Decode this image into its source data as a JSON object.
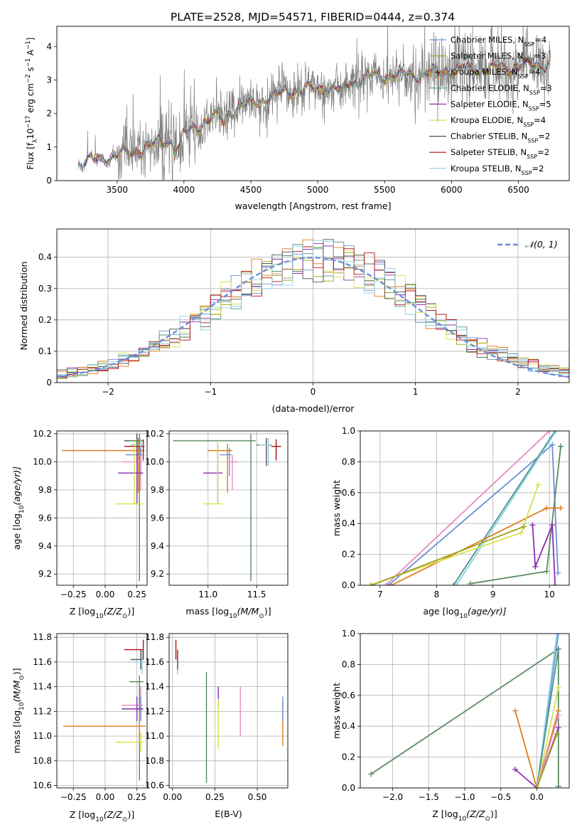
{
  "figure": {
    "title": "PLATE=2528, MJD=54571, FIBERID=0444, z=0.374",
    "series_colors": [
      "#6a8fd6",
      "#a0a020",
      "#e07b1a",
      "#4f8f8f",
      "#8b2fb0",
      "#d4e24a",
      "#505050",
      "#b01010",
      "#8ad0e0",
      "#e78ac3",
      "#5a8a60"
    ]
  },
  "chart_data": [
    {
      "type": "line",
      "id": "spectrum",
      "title": "PLATE=2528, MJD=54571, FIBERID=0444, z=0.374",
      "xlabel": "wavelength [Angstrom, rest frame]",
      "ylabel": "Flux [f",
      "ylabel_sub": "λ",
      "ylabel_rest": "10",
      "ylabel_exp1": "−17",
      "ylabel_mid": " erg cm",
      "ylabel_exp2": "−2",
      "ylabel_mid2": " s",
      "ylabel_exp3": "−1",
      "ylabel_end": " A",
      "ylabel_exp4": "−1",
      "ylabel_close": "]",
      "xlim": [
        3050,
        6880
      ],
      "ylim": [
        0,
        4.6
      ],
      "xticks": [
        3500,
        4000,
        4500,
        5000,
        5500,
        6000,
        6500
      ],
      "yticks": [
        0,
        1,
        2,
        3,
        4
      ],
      "grid": false,
      "legend_position": "upper-right",
      "data_range": [
        3210,
        6740
      ],
      "continuum_anchor_x": [
        3210,
        3500,
        3700,
        3950,
        4200,
        4500,
        4800,
        5100,
        5400,
        5700,
        6000,
        6300,
        6740
      ],
      "continuum_anchor_y": [
        0.5,
        0.75,
        0.95,
        1.3,
        1.85,
        2.3,
        2.7,
        2.75,
        3.1,
        3.15,
        3.3,
        3.35,
        3.5
      ],
      "series": [
        {
          "legend": "Chabrier MILES, N",
          "legend_sub": "SSP",
          "legend_value": "=4",
          "color": "#6a8fd6"
        },
        {
          "legend": "Salpeter MILES, N",
          "legend_sub": "SSP",
          "legend_value": "=3",
          "color": "#a0a020"
        },
        {
          "legend": "Kroupa MILES, N",
          "legend_sub": "SSP",
          "legend_value": "=4",
          "color": "#e07b1a"
        },
        {
          "legend": "Chabrier ELODIE, N",
          "legend_sub": "SSP",
          "legend_value": "=3",
          "color": "#4f8f8f"
        },
        {
          "legend": "Salpeter ELODIE, N",
          "legend_sub": "SSP",
          "legend_value": "=5",
          "color": "#8b2fb0"
        },
        {
          "legend": "Kroupa ELODIE, N",
          "legend_sub": "SSP",
          "legend_value": "=4",
          "color": "#d4e24a"
        },
        {
          "legend": "Chabrier STELIB, N",
          "legend_sub": "SSP",
          "legend_value": "=2",
          "color": "#505050"
        },
        {
          "legend": "Salpeter STELIB, N",
          "legend_sub": "SSP",
          "legend_value": "=2",
          "color": "#b01010"
        },
        {
          "legend": "Kroupa STELIB, N",
          "legend_sub": "SSP",
          "legend_value": "=2",
          "color": "#8ad0e0"
        }
      ]
    },
    {
      "type": "area",
      "id": "residual-histogram",
      "xlabel": "(data-model)/error",
      "ylabel": "Normed distribution",
      "xlim": [
        -2.5,
        2.5
      ],
      "ylim": [
        0,
        0.49
      ],
      "xticks": [
        -2,
        -1,
        0,
        1,
        2
      ],
      "yticks": [
        0.0,
        0.1,
        0.2,
        0.3,
        0.4
      ],
      "grid": true,
      "legend_position": "upper-right",
      "reference_curve": {
        "legend": "𝒩(0, 1)",
        "color": "#6a8fd6",
        "style": "dashed"
      },
      "bin_width": 0.1,
      "series_colors": [
        "#6a8fd6",
        "#a0a020",
        "#e07b1a",
        "#4f8f8f",
        "#8b2fb0",
        "#d4e24a",
        "#505050",
        "#b01010",
        "#8ad0e0"
      ]
    },
    {
      "type": "scatter",
      "id": "age-vs-Z",
      "xlabel": "Z [log",
      "xlabel_sub": "10",
      "xlabel_rest": "(Z/Z",
      "xlabel_sub2": "⊙",
      "xlabel_end": ")]",
      "ylabel": "age  [log",
      "ylabel_sub": "10",
      "ylabel_rest": "(age/yr)]",
      "xlim": [
        -0.38,
        0.33
      ],
      "ylim": [
        9.12,
        10.22
      ],
      "xticks": [
        "-0.25",
        "0.00",
        "0.25"
      ],
      "xtick_values": [
        -0.25,
        0.0,
        0.25
      ],
      "yticks": [
        "9.2",
        "9.4",
        "9.6",
        "9.8",
        "10.0",
        "10.2"
      ],
      "ytick_values": [
        9.2,
        9.4,
        9.6,
        9.8,
        10.0,
        10.2
      ],
      "grid": true,
      "points": [
        {
          "x": 0.26,
          "y": 10.08,
          "xerr": [
            0.6,
            0.05
          ],
          "yerr": [
            0.3,
            0.09
          ],
          "color": "#e07b1a"
        },
        {
          "x": 0.25,
          "y": 10.15,
          "xerr": [
            0.1,
            0.05
          ],
          "yerr": [
            0.15,
            0.05
          ],
          "color": "#505050"
        },
        {
          "x": 0.27,
          "y": 10.15,
          "xerr": [
            0.08,
            0.03
          ],
          "yerr": [
            1.0,
            0.05
          ],
          "color": "#5a8a60"
        },
        {
          "x": 0.3,
          "y": 10.11,
          "xerr": [
            0.15,
            0.01
          ],
          "yerr": [
            0.1,
            0.05
          ],
          "color": "#b01010"
        },
        {
          "x": 0.28,
          "y": 10.12,
          "xerr": [
            0.08,
            0.02
          ],
          "yerr": [
            0.15,
            0.05
          ],
          "color": "#8ad0e0"
        },
        {
          "x": 0.28,
          "y": 10.05,
          "xerr": [
            0.12,
            0.02
          ],
          "yerr": [
            0.15,
            0.05
          ],
          "color": "#6a8fd6"
        },
        {
          "x": 0.28,
          "y": 10.0,
          "xerr": [
            0.15,
            0.02
          ],
          "yerr": [
            0.2,
            0.05
          ],
          "color": "#e78ac3"
        },
        {
          "x": 0.25,
          "y": 9.92,
          "xerr": [
            0.15,
            0.05
          ],
          "yerr": [
            0.22,
            0.2
          ],
          "color": "#8b2fb0"
        },
        {
          "x": 0.23,
          "y": 9.7,
          "xerr": [
            0.15,
            0.07
          ],
          "yerr": [
            0.0,
            0.45
          ],
          "color": "#d4e24a"
        }
      ]
    },
    {
      "type": "scatter",
      "id": "age-vs-mass",
      "xlabel": "mass [log",
      "xlabel_sub": "10",
      "xlabel_rest": "(M/M",
      "xlabel_sub2": "⊙",
      "xlabel_end": ")]",
      "xlim": [
        10.6,
        11.82
      ],
      "ylim": [
        9.12,
        10.22
      ],
      "xticks": [
        "11.0",
        "11.5"
      ],
      "xtick_values": [
        11.0,
        11.5
      ],
      "yticks": [
        "9.2",
        "9.4",
        "9.6",
        "9.8",
        "10.0",
        "10.2"
      ],
      "ytick_values": [
        9.2,
        9.4,
        9.6,
        9.8,
        10.0,
        10.2
      ],
      "grid": true,
      "points": [
        {
          "x": 11.44,
          "y": 10.15,
          "xerr": [
            0.8,
            0.05
          ],
          "yerr": [
            1.0,
            0.05
          ],
          "color": "#5a8a60"
        },
        {
          "x": 11.2,
          "y": 10.08,
          "xerr": [
            0.2,
            0.05
          ],
          "yerr": [
            0.3,
            0.05
          ],
          "color": "#e07b1a"
        },
        {
          "x": 11.6,
          "y": 10.12,
          "xerr": [
            0.1,
            0.05
          ],
          "yerr": [
            0.15,
            0.05
          ],
          "color": "#505050"
        },
        {
          "x": 11.7,
          "y": 10.11,
          "xerr": [
            0.05,
            0.05
          ],
          "yerr": [
            0.1,
            0.05
          ],
          "color": "#b01010"
        },
        {
          "x": 11.62,
          "y": 10.12,
          "xerr": [
            0.1,
            0.02
          ],
          "yerr": [
            0.15,
            0.05
          ],
          "color": "#8ad0e0"
        },
        {
          "x": 11.22,
          "y": 10.05,
          "xerr": [
            0.1,
            0.02
          ],
          "yerr": [
            0.15,
            0.05
          ],
          "color": "#6a8fd6"
        },
        {
          "x": 11.25,
          "y": 10.0,
          "xerr": [
            0.05,
            0.05
          ],
          "yerr": [
            0.2,
            0.05
          ],
          "color": "#e78ac3"
        },
        {
          "x": 11.1,
          "y": 9.92,
          "xerr": [
            0.15,
            0.05
          ],
          "yerr": [
            0.22,
            0.2
          ],
          "color": "#8b2fb0"
        },
        {
          "x": 11.1,
          "y": 9.7,
          "xerr": [
            0.15,
            0.05
          ],
          "yerr": [
            0.0,
            0.45
          ],
          "color": "#d4e24a"
        }
      ]
    },
    {
      "type": "line",
      "id": "massweight-vs-age",
      "xlabel": "age  [log",
      "xlabel_sub": "10",
      "xlabel_rest": "(age/yr)]",
      "ylabel": "mass weight",
      "xlim": [
        6.65,
        10.35
      ],
      "ylim": [
        0,
        1.0
      ],
      "xticks": [
        "7",
        "8",
        "9",
        "10"
      ],
      "xtick_values": [
        7,
        8,
        9,
        10
      ],
      "yticks": [
        "0.0",
        "0.2",
        "0.4",
        "0.6",
        "0.8",
        "1.0"
      ],
      "ytick_values": [
        0.0,
        0.2,
        0.4,
        0.6,
        0.8,
        1.0
      ],
      "grid": true,
      "series": [
        {
          "color": "#e78ac3",
          "x": [
            7.1,
            10.0
          ],
          "y": [
            0.0,
            1.0
          ]
        },
        {
          "color": "#6a8fd6",
          "x": [
            7.15,
            10.05,
            10.15
          ],
          "y": [
            0.0,
            0.91,
            0.08
          ]
        },
        {
          "color": "#4f8f8f",
          "x": [
            8.3,
            10.1
          ],
          "y": [
            0.0,
            1.0
          ]
        },
        {
          "color": "#8ad0e0",
          "x": [
            8.35,
            10.12
          ],
          "y": [
            0.0,
            1.0
          ]
        },
        {
          "color": "#5a8a60",
          "x": [
            8.6,
            9.95,
            10.2,
            10.2
          ],
          "y": [
            0.01,
            0.09,
            0.9,
            0.9
          ]
        },
        {
          "color": "#e07b1a",
          "x": [
            7.2,
            9.95,
            10.2
          ],
          "y": [
            0.0,
            0.5,
            0.5
          ]
        },
        {
          "color": "#8b2fb0",
          "x": [
            9.7,
            9.75,
            10.05,
            10.1
          ],
          "y": [
            0.39,
            0.12,
            0.39,
            0.0
          ]
        },
        {
          "color": "#d4e24a",
          "x": [
            6.82,
            9.5,
            9.8
          ],
          "y": [
            0.0,
            0.34,
            0.65
          ]
        },
        {
          "color": "#a0a020",
          "x": [
            6.85,
            9.55
          ],
          "y": [
            0.0,
            0.38
          ]
        }
      ]
    },
    {
      "type": "scatter",
      "id": "mass-vs-Z",
      "xlabel": "Z [log",
      "xlabel_sub": "10",
      "xlabel_rest": "(Z/Z",
      "xlabel_sub2": "⊙",
      "xlabel_end": ")]",
      "ylabel": "mass [log",
      "ylabel_sub": "10",
      "ylabel_rest": "(M/M",
      "ylabel_sub2": "⊙",
      "ylabel_end": ")]",
      "xlim": [
        -0.38,
        0.33
      ],
      "ylim": [
        10.58,
        11.83
      ],
      "xticks": [
        "-0.25",
        "0.00",
        "0.25"
      ],
      "xtick_values": [
        -0.25,
        0.0,
        0.25
      ],
      "yticks": [
        "10.6",
        "10.8",
        "11.0",
        "11.2",
        "11.4",
        "11.6",
        "11.8"
      ],
      "ytick_values": [
        10.6,
        10.8,
        11.0,
        11.2,
        11.4,
        11.6,
        11.8
      ],
      "grid": true,
      "points": [
        {
          "x": 0.3,
          "y": 11.7,
          "xerr": [
            0.15,
            0.0
          ],
          "yerr": [
            0.08,
            0.08
          ],
          "color": "#b01010"
        },
        {
          "x": 0.28,
          "y": 11.62,
          "xerr": [
            0.08,
            0.02
          ],
          "yerr": [
            0.08,
            0.08
          ],
          "color": "#505050"
        },
        {
          "x": 0.29,
          "y": 11.6,
          "xerr": [
            0.08,
            0.02
          ],
          "yerr": [
            0.1,
            0.1
          ],
          "color": "#8ad0e0"
        },
        {
          "x": 0.27,
          "y": 11.44,
          "xerr": [
            0.08,
            0.03
          ],
          "yerr": [
            0.8,
            0.05
          ],
          "color": "#5a8a60"
        },
        {
          "x": 0.28,
          "y": 11.25,
          "xerr": [
            0.15,
            0.02
          ],
          "yerr": [
            0.1,
            0.15
          ],
          "color": "#e78ac3"
        },
        {
          "x": 0.28,
          "y": 11.22,
          "xerr": [
            0.15,
            0.02
          ],
          "yerr": [
            0.1,
            0.1
          ],
          "color": "#6a8fd6"
        },
        {
          "x": 0.25,
          "y": 11.22,
          "xerr": [
            0.12,
            0.05
          ],
          "yerr": [
            0.1,
            0.1
          ],
          "color": "#8b2fb0"
        },
        {
          "x": 0.27,
          "y": 11.08,
          "xerr": [
            0.6,
            0.05
          ],
          "yerr": [
            0.12,
            0.12
          ],
          "color": "#e07b1a"
        },
        {
          "x": 0.28,
          "y": 10.95,
          "xerr": [
            0.2,
            0.02
          ],
          "yerr": [
            0.08,
            0.08
          ],
          "color": "#d4e24a"
        }
      ]
    },
    {
      "type": "scatter",
      "id": "mass-vs-EBV",
      "xlabel": "E(B-V)",
      "xlim": [
        -0.02,
        0.68
      ],
      "ylim": [
        10.58,
        11.83
      ],
      "xticks": [
        "0.00",
        "0.25",
        "0.50"
      ],
      "xtick_values": [
        0.0,
        0.25,
        0.5
      ],
      "yticks": [
        "10.6",
        "10.8",
        "11.0",
        "11.2",
        "11.4",
        "11.6",
        "11.8"
      ],
      "ytick_values": [
        10.6,
        10.8,
        11.0,
        11.2,
        11.4,
        11.6,
        11.8
      ],
      "grid": true,
      "points": [
        {
          "x": 0.02,
          "y": 11.7,
          "yerr": [
            0.08,
            0.08
          ],
          "color": "#b01010"
        },
        {
          "x": 0.03,
          "y": 11.6,
          "yerr": [
            0.1,
            0.1
          ],
          "color": "#8ad0e0"
        },
        {
          "x": 0.03,
          "y": 11.62,
          "yerr": [
            0.08,
            0.08
          ],
          "color": "#505050"
        },
        {
          "x": 0.2,
          "y": 11.07,
          "yerr": [
            0.45,
            0.45
          ],
          "color": "#5a8a60"
        },
        {
          "x": 0.27,
          "y": 11.32,
          "yerr": [
            0.08,
            0.08
          ],
          "color": "#8b2fb0"
        },
        {
          "x": 0.27,
          "y": 11.1,
          "yerr": [
            0.2,
            0.2
          ],
          "color": "#d4e24a"
        },
        {
          "x": 0.4,
          "y": 11.2,
          "yerr": [
            0.2,
            0.2
          ],
          "color": "#e78ac3"
        },
        {
          "x": 0.65,
          "y": 11.1,
          "yerr": [
            0.18,
            0.18
          ],
          "color": "#e07b1a"
        },
        {
          "x": 0.65,
          "y": 11.22,
          "yerr": [
            0.1,
            0.1
          ],
          "color": "#6a8fd6"
        }
      ]
    },
    {
      "type": "line",
      "id": "massweight-vs-Z",
      "xlabel": "Z [log",
      "xlabel_sub": "10",
      "xlabel_rest": "(Z/Z",
      "xlabel_sub2": "⊙",
      "xlabel_end": ")]",
      "ylabel": "mass weight",
      "xlim": [
        -2.45,
        0.45
      ],
      "ylim": [
        0,
        1.0
      ],
      "xticks": [
        "-2.0",
        "-1.5",
        "-1.0",
        "-0.5",
        "0.0"
      ],
      "xtick_values": [
        -2.0,
        -1.5,
        -1.0,
        -0.5,
        0.0
      ],
      "yticks": [
        "0.0",
        "0.2",
        "0.4",
        "0.6",
        "0.8",
        "1.0"
      ],
      "ytick_values": [
        0.0,
        0.2,
        0.4,
        0.6,
        0.8,
        1.0
      ],
      "grid": true,
      "series": [
        {
          "color": "#5a8a60",
          "x": [
            -2.3,
            0.3,
            0.3,
            0.3
          ],
          "y": [
            0.09,
            0.9,
            0.9,
            0.01
          ]
        },
        {
          "color": "#e07b1a",
          "x": [
            -0.3,
            0.0,
            0.3
          ],
          "y": [
            0.5,
            0.0,
            0.5
          ]
        },
        {
          "color": "#8b2fb0",
          "x": [
            -0.3,
            0.0,
            0.3
          ],
          "y": [
            0.12,
            0.0,
            0.39
          ]
        },
        {
          "color": "#6a8fd6",
          "x": [
            0.0,
            0.3
          ],
          "y": [
            0.0,
            1.0
          ]
        },
        {
          "color": "#8ad0e0",
          "x": [
            0.0,
            0.28
          ],
          "y": [
            0.0,
            1.0
          ]
        },
        {
          "color": "#4f8f8f",
          "x": [
            0.0,
            0.3
          ],
          "y": [
            0.0,
            0.9
          ]
        },
        {
          "color": "#d4e24a",
          "x": [
            0.0,
            0.3
          ],
          "y": [
            0.0,
            0.65
          ]
        },
        {
          "color": "#e78ac3",
          "x": [
            0.0,
            0.3
          ],
          "y": [
            0.0,
            0.47
          ]
        },
        {
          "color": "#a0a020",
          "x": [
            0.0,
            0.28
          ],
          "y": [
            0.0,
            0.35
          ]
        }
      ]
    }
  ]
}
